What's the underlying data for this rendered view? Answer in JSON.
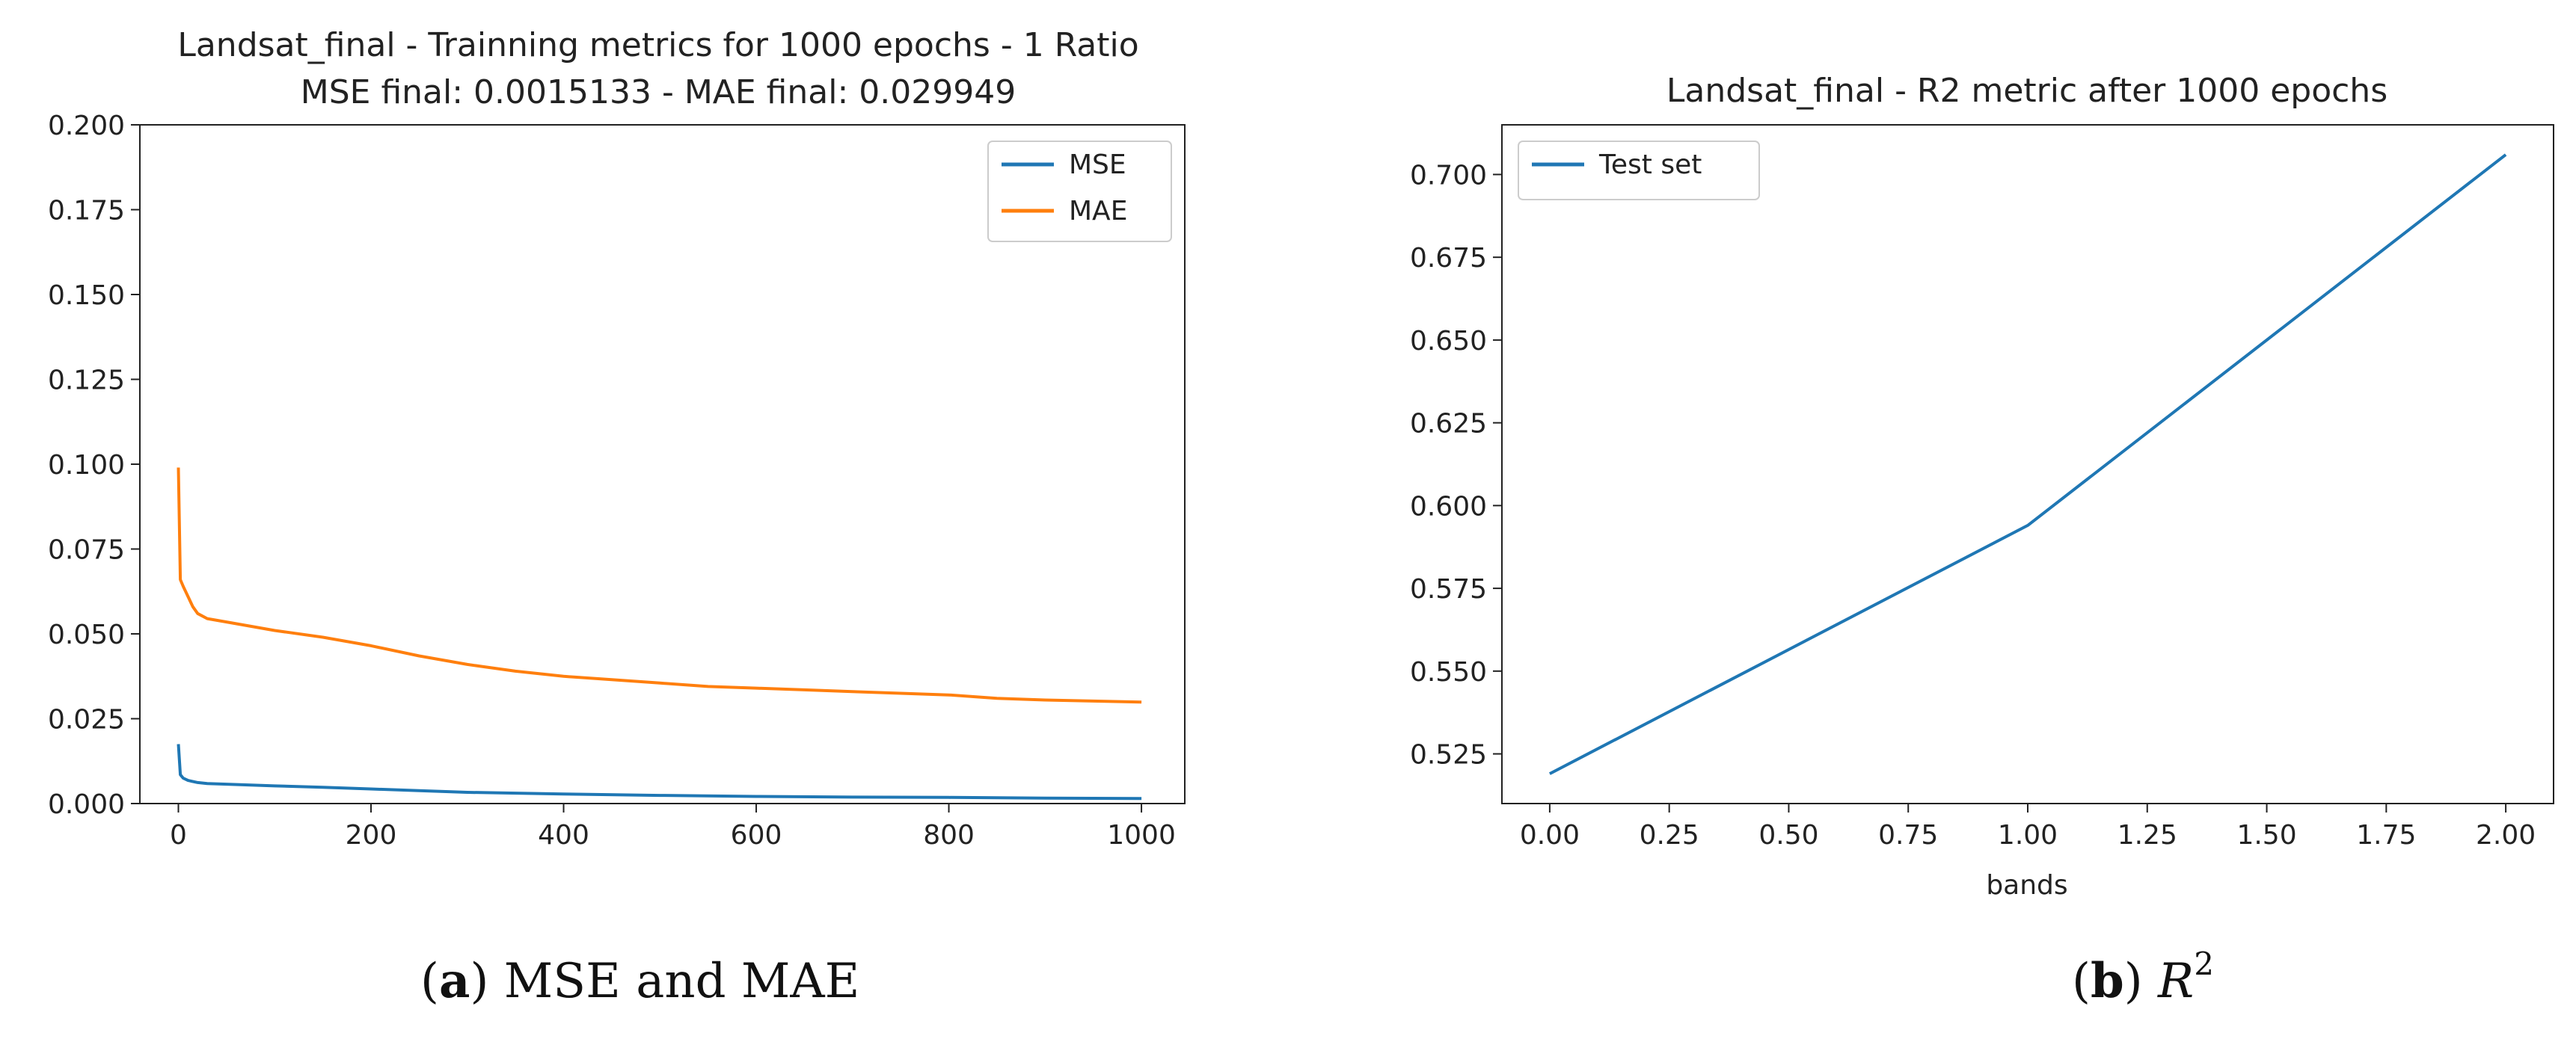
{
  "chart_data": [
    {
      "type": "line",
      "title": "Landsat_final - Trainning metrics for 1000 epochs - 1 Ratio",
      "subtitle": "MSE final: 0.0015133 - MAE final: 0.029949",
      "xlabel": "",
      "ylabel": "",
      "xlim": [
        -40,
        1045
      ],
      "ylim": [
        0,
        0.2
      ],
      "xticks": [
        "0",
        "200",
        "400",
        "600",
        "800",
        "1000"
      ],
      "xtick_values": [
        0,
        200,
        400,
        600,
        800,
        1000
      ],
      "yticks": [
        "0.000",
        "0.025",
        "0.050",
        "0.075",
        "0.100",
        "0.125",
        "0.150",
        "0.175",
        "0.200"
      ],
      "ytick_values": [
        0,
        0.025,
        0.05,
        0.075,
        0.1,
        0.125,
        0.15,
        0.175,
        0.2
      ],
      "grid": false,
      "legend_position": "top-right",
      "series": [
        {
          "name": "MSE",
          "color": "#1f77b4",
          "x": [
            0,
            2,
            5,
            10,
            20,
            30,
            50,
            100,
            150,
            200,
            250,
            300,
            400,
            500,
            600,
            700,
            800,
            900,
            1000
          ],
          "y": [
            0.0175,
            0.0085,
            0.0075,
            0.0068,
            0.0062,
            0.0059,
            0.0057,
            0.0052,
            0.0048,
            0.0043,
            0.0038,
            0.0033,
            0.0028,
            0.0024,
            0.0021,
            0.0019,
            0.0018,
            0.0016,
            0.0015
          ]
        },
        {
          "name": "MAE",
          "color": "#ff7f0e",
          "x": [
            0,
            2,
            5,
            10,
            15,
            20,
            30,
            50,
            100,
            150,
            200,
            250,
            300,
            350,
            400,
            450,
            500,
            550,
            600,
            650,
            700,
            750,
            800,
            850,
            900,
            950,
            1000
          ],
          "y": [
            0.099,
            0.066,
            0.064,
            0.061,
            0.058,
            0.056,
            0.0545,
            0.0535,
            0.051,
            0.049,
            0.0465,
            0.0435,
            0.041,
            0.039,
            0.0375,
            0.0365,
            0.0355,
            0.0345,
            0.034,
            0.0335,
            0.033,
            0.0325,
            0.032,
            0.031,
            0.0305,
            0.0302,
            0.0299
          ]
        }
      ]
    },
    {
      "type": "line",
      "title": "Landsat_final - R2 metric after 1000 epochs",
      "xlabel": "bands",
      "ylabel": "",
      "xlim": [
        -0.1,
        2.1
      ],
      "ylim": [
        0.51,
        0.715
      ],
      "xticks": [
        "0.00",
        "0.25",
        "0.50",
        "0.75",
        "1.00",
        "1.25",
        "1.50",
        "1.75",
        "2.00"
      ],
      "xtick_values": [
        0,
        0.25,
        0.5,
        0.75,
        1.0,
        1.25,
        1.5,
        1.75,
        2.0
      ],
      "yticks": [
        "0.525",
        "0.550",
        "0.575",
        "0.600",
        "0.625",
        "0.650",
        "0.675",
        "0.700"
      ],
      "ytick_values": [
        0.525,
        0.55,
        0.575,
        0.6,
        0.625,
        0.65,
        0.675,
        0.7
      ],
      "grid": false,
      "legend_position": "top-left",
      "series": [
        {
          "name": "Test set",
          "color": "#1f77b4",
          "x": [
            0,
            1,
            2
          ],
          "y": [
            0.519,
            0.594,
            0.706
          ]
        }
      ]
    }
  ],
  "captions": {
    "a_label": "a",
    "a_text": " MSE and MAE",
    "b_label": "b",
    "b_var": "R",
    "b_sup": "2"
  }
}
